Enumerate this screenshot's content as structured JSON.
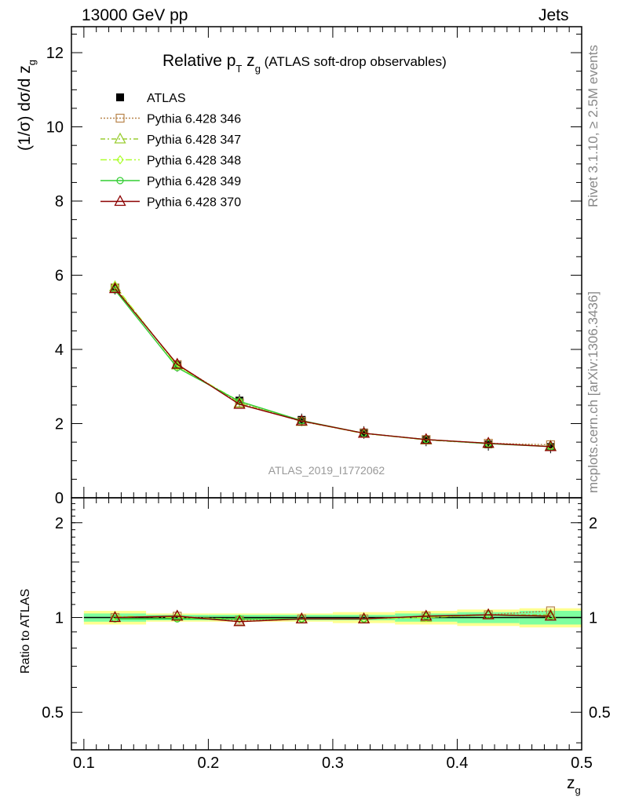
{
  "header": {
    "left": "13000 GeV pp",
    "right": "Jets"
  },
  "side": {
    "rivet": "Rivet 3.1.10, ≥ 2.5M events",
    "mcplots": "mcplots.cern.ch [arXiv:1306.3436]"
  },
  "colors": {
    "atlas": "#000000",
    "p346": "#b8844a",
    "p347": "#9acd32",
    "p348": "#adff2f",
    "p349": "#32cd32",
    "p370": "#8b0000",
    "band_inner": "#7fff9f",
    "band_outer": "#ffff90"
  },
  "chart_data": [
    {
      "type": "line",
      "title_main": "Relative p",
      "title_sub_T": "T",
      "title_z": " z",
      "title_sub_g": "g",
      "title_rest": " (ATLAS soft-drop observables)",
      "ylabel": "(1/σ) dσ/d z",
      "ylabel_sub": "g",
      "watermark": "ATLAS_2019_I1772062",
      "xlim": [
        0.09,
        0.5
      ],
      "ylim": [
        0,
        12.7
      ],
      "yticks": [
        0,
        2,
        4,
        6,
        8,
        10,
        12
      ],
      "x": [
        0.125,
        0.175,
        0.225,
        0.275,
        0.325,
        0.375,
        0.425,
        0.475
      ],
      "x_edges": [
        0.1,
        0.15,
        0.2,
        0.25,
        0.3,
        0.35,
        0.4,
        0.45,
        0.5
      ],
      "series": [
        {
          "name": "ATLAS",
          "key": "atlas",
          "values": [
            5.65,
            3.57,
            2.62,
            2.1,
            1.76,
            1.56,
            1.44,
            1.37
          ]
        },
        {
          "name": "Pythia 6.428 346",
          "key": "p346",
          "values": [
            5.66,
            3.59,
            2.56,
            2.06,
            1.74,
            1.57,
            1.47,
            1.43
          ]
        },
        {
          "name": "Pythia 6.428 347",
          "key": "p347",
          "values": [
            5.69,
            3.58,
            2.55,
            2.06,
            1.74,
            1.56,
            1.46,
            1.39
          ]
        },
        {
          "name": "Pythia 6.428 348",
          "key": "p348",
          "values": [
            5.72,
            3.55,
            2.6,
            2.07,
            1.73,
            1.57,
            1.47,
            1.38
          ]
        },
        {
          "name": "Pythia 6.428 349",
          "key": "p349",
          "values": [
            5.6,
            3.51,
            2.6,
            2.08,
            1.74,
            1.57,
            1.46,
            1.38
          ]
        },
        {
          "name": "Pythia 6.428 370",
          "key": "p370",
          "values": [
            5.64,
            3.6,
            2.52,
            2.07,
            1.74,
            1.57,
            1.47,
            1.38
          ]
        }
      ],
      "legend": "top-left"
    },
    {
      "type": "line",
      "ylabel": "Ratio to ATLAS",
      "xlabel": "z",
      "xlabel_sub": "g",
      "xlim": [
        0.09,
        0.5
      ],
      "ylim": [
        0.38,
        2.4
      ],
      "log_y": true,
      "yticks": [
        0.5,
        1,
        2
      ],
      "ytick_labels": [
        "0.5",
        "1",
        "2"
      ],
      "xticks": [
        0.1,
        0.2,
        0.3,
        0.4,
        0.5
      ],
      "xtick_labels": [
        "0.1",
        "0.2",
        "0.3",
        "0.4",
        "0.5"
      ],
      "x": [
        0.125,
        0.175,
        0.225,
        0.275,
        0.325,
        0.375,
        0.425,
        0.475
      ],
      "band_inner": [
        0.03,
        0.02,
        0.02,
        0.02,
        0.02,
        0.03,
        0.04,
        0.05
      ],
      "band_outer": [
        0.05,
        0.03,
        0.03,
        0.03,
        0.04,
        0.05,
        0.06,
        0.07
      ],
      "series": [
        {
          "name": "Pythia 6.428 346",
          "key": "p346",
          "values": [
            1.0,
            1.01,
            0.98,
            0.99,
            0.99,
            1.01,
            1.02,
            1.05
          ]
        },
        {
          "name": "Pythia 6.428 347",
          "key": "p347",
          "values": [
            1.0,
            1.01,
            0.97,
            0.99,
            0.99,
            1.0,
            1.02,
            1.02
          ]
        },
        {
          "name": "Pythia 6.428 348",
          "key": "p348",
          "values": [
            1.01,
            1.0,
            0.99,
            0.99,
            0.99,
            1.0,
            1.02,
            1.01
          ]
        },
        {
          "name": "Pythia 6.428 349",
          "key": "p349",
          "values": [
            0.99,
            0.99,
            0.99,
            0.99,
            0.99,
            1.01,
            1.02,
            1.01
          ]
        },
        {
          "name": "Pythia 6.428 370",
          "key": "p370",
          "values": [
            1.0,
            1.01,
            0.97,
            0.99,
            0.99,
            1.01,
            1.02,
            1.01
          ]
        }
      ]
    }
  ]
}
